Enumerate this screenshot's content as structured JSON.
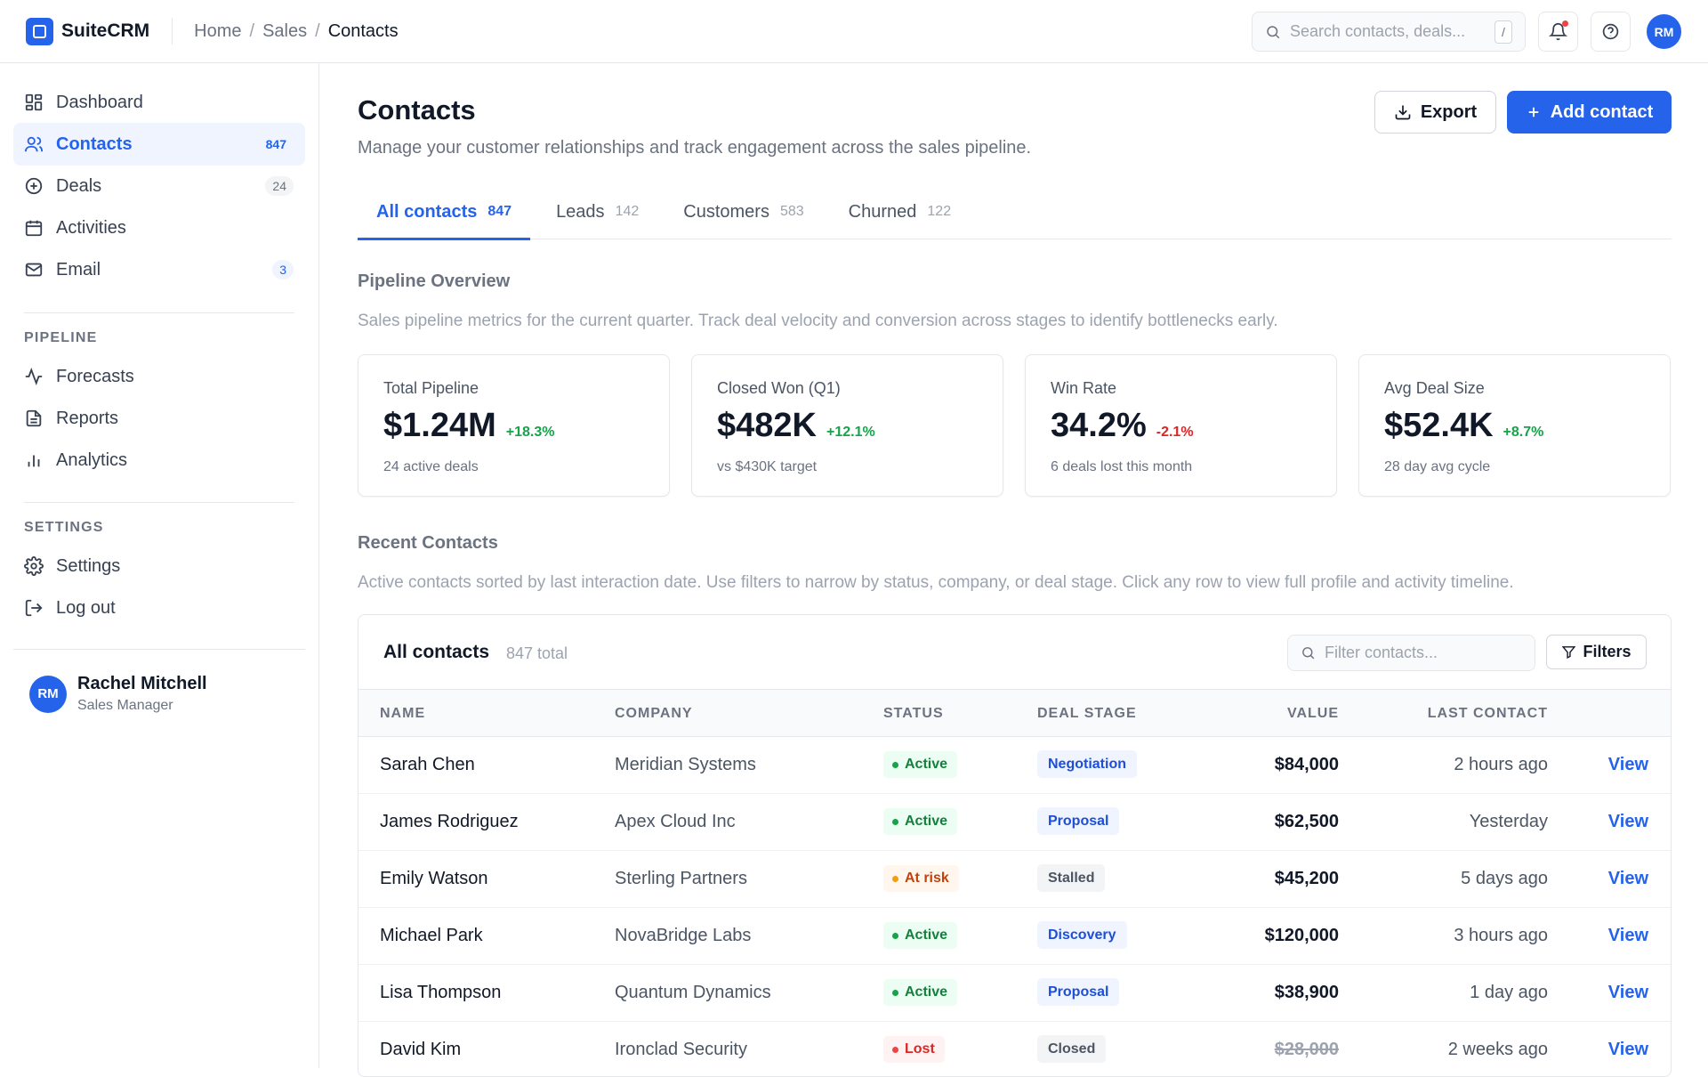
{
  "app": {
    "name": "SuiteCRM",
    "breadcrumb": [
      "Home",
      "Sales",
      "Contacts"
    ],
    "search_placeholder": "Search contacts, deals...",
    "search_shortcut": "/",
    "user_initials": "RM"
  },
  "sidebar": {
    "main_items": [
      {
        "label": "Dashboard",
        "icon": "grid-icon",
        "badge": ""
      },
      {
        "label": "Contacts",
        "icon": "users-icon",
        "badge": "847",
        "active": true
      },
      {
        "label": "Deals",
        "icon": "plus-circle-icon",
        "badge": "24"
      },
      {
        "label": "Activities",
        "icon": "calendar-icon",
        "badge": ""
      },
      {
        "label": "Email",
        "icon": "mail-icon",
        "badge": "3"
      }
    ],
    "pipeline_label": "PIPELINE",
    "pipeline_items": [
      {
        "label": "Forecasts",
        "icon": "activity-icon"
      },
      {
        "label": "Reports",
        "icon": "file-text-icon"
      },
      {
        "label": "Analytics",
        "icon": "bar-chart-icon"
      }
    ],
    "settings_label": "SETTINGS",
    "settings_items": [
      {
        "label": "Settings",
        "icon": "gear-icon"
      },
      {
        "label": "Log out",
        "icon": "logout-icon"
      }
    ],
    "user": {
      "initials": "RM",
      "name": "Rachel Mitchell",
      "role": "Sales Manager"
    }
  },
  "header": {
    "title": "Contacts",
    "subtitle": "Manage your customer relationships and track engagement across the sales pipeline.",
    "export_label": "Export",
    "add_label": "Add contact"
  },
  "tabs": [
    {
      "label": "All contacts",
      "count": "847",
      "active": true
    },
    {
      "label": "Leads",
      "count": "142"
    },
    {
      "label": "Customers",
      "count": "583"
    },
    {
      "label": "Churned",
      "count": "122"
    }
  ],
  "pipeline": {
    "title": "Pipeline Overview",
    "description": "Sales pipeline metrics for the current quarter. Track deal velocity and conversion across stages to identify bottlenecks early.",
    "kpis": [
      {
        "label": "Total Pipeline",
        "value": "$1.24M",
        "change": "+18.3%",
        "direction": "up",
        "sub": "24 active deals"
      },
      {
        "label": "Closed Won (Q1)",
        "value": "$482K",
        "change": "+12.1%",
        "direction": "up",
        "sub": "vs $430K target"
      },
      {
        "label": "Win Rate",
        "value": "34.2%",
        "change": "-2.1%",
        "direction": "down",
        "sub": "6 deals lost this month"
      },
      {
        "label": "Avg Deal Size",
        "value": "$52.4K",
        "change": "+8.7%",
        "direction": "up",
        "sub": "28 day avg cycle"
      }
    ]
  },
  "recent": {
    "title": "Recent Contacts",
    "description": "Active contacts sorted by last interaction date. Use filters to narrow by status, company, or deal stage. Click any row to view full profile and activity timeline."
  },
  "table": {
    "title": "All contacts",
    "total": "847 total",
    "filter_placeholder": "Filter contacts...",
    "filters_label": "Filters",
    "columns": {
      "name": "NAME",
      "company": "COMPANY",
      "status": "STATUS",
      "stage": "DEAL STAGE",
      "value": "VALUE",
      "last": "LAST CONTACT"
    },
    "rows": [
      {
        "name": "Sarah Chen",
        "company": "Meridian Systems",
        "status": "Active",
        "status_type": "active",
        "stage": "Negotiation",
        "stage_type": "blue",
        "value": "$84,000",
        "strike": false,
        "last": "2 hours ago",
        "action": "View"
      },
      {
        "name": "James Rodriguez",
        "company": "Apex Cloud Inc",
        "status": "Active",
        "status_type": "active",
        "stage": "Proposal",
        "stage_type": "blue",
        "value": "$62,500",
        "strike": false,
        "last": "Yesterday",
        "action": "View"
      },
      {
        "name": "Emily Watson",
        "company": "Sterling Partners",
        "status": "At risk",
        "status_type": "risk",
        "stage": "Stalled",
        "stage_type": "gray",
        "value": "$45,200",
        "strike": false,
        "last": "5 days ago",
        "action": "View"
      },
      {
        "name": "Michael Park",
        "company": "NovaBridge Labs",
        "status": "Active",
        "status_type": "active",
        "stage": "Discovery",
        "stage_type": "blue",
        "value": "$120,000",
        "strike": false,
        "last": "3 hours ago",
        "action": "View"
      },
      {
        "name": "Lisa Thompson",
        "company": "Quantum Dynamics",
        "status": "Active",
        "status_type": "active",
        "stage": "Proposal",
        "stage_type": "blue",
        "value": "$38,900",
        "strike": false,
        "last": "1 day ago",
        "action": "View"
      },
      {
        "name": "David Kim",
        "company": "Ironclad Security",
        "status": "Lost",
        "status_type": "lost",
        "stage": "Closed",
        "stage_type": "gray",
        "value": "$28,000",
        "strike": true,
        "last": "2 weeks ago",
        "action": "View"
      }
    ]
  },
  "colors": {
    "accent": "#2563eb",
    "success": "#16a34a",
    "danger": "#dc2626",
    "warning": "#f59e0b"
  }
}
